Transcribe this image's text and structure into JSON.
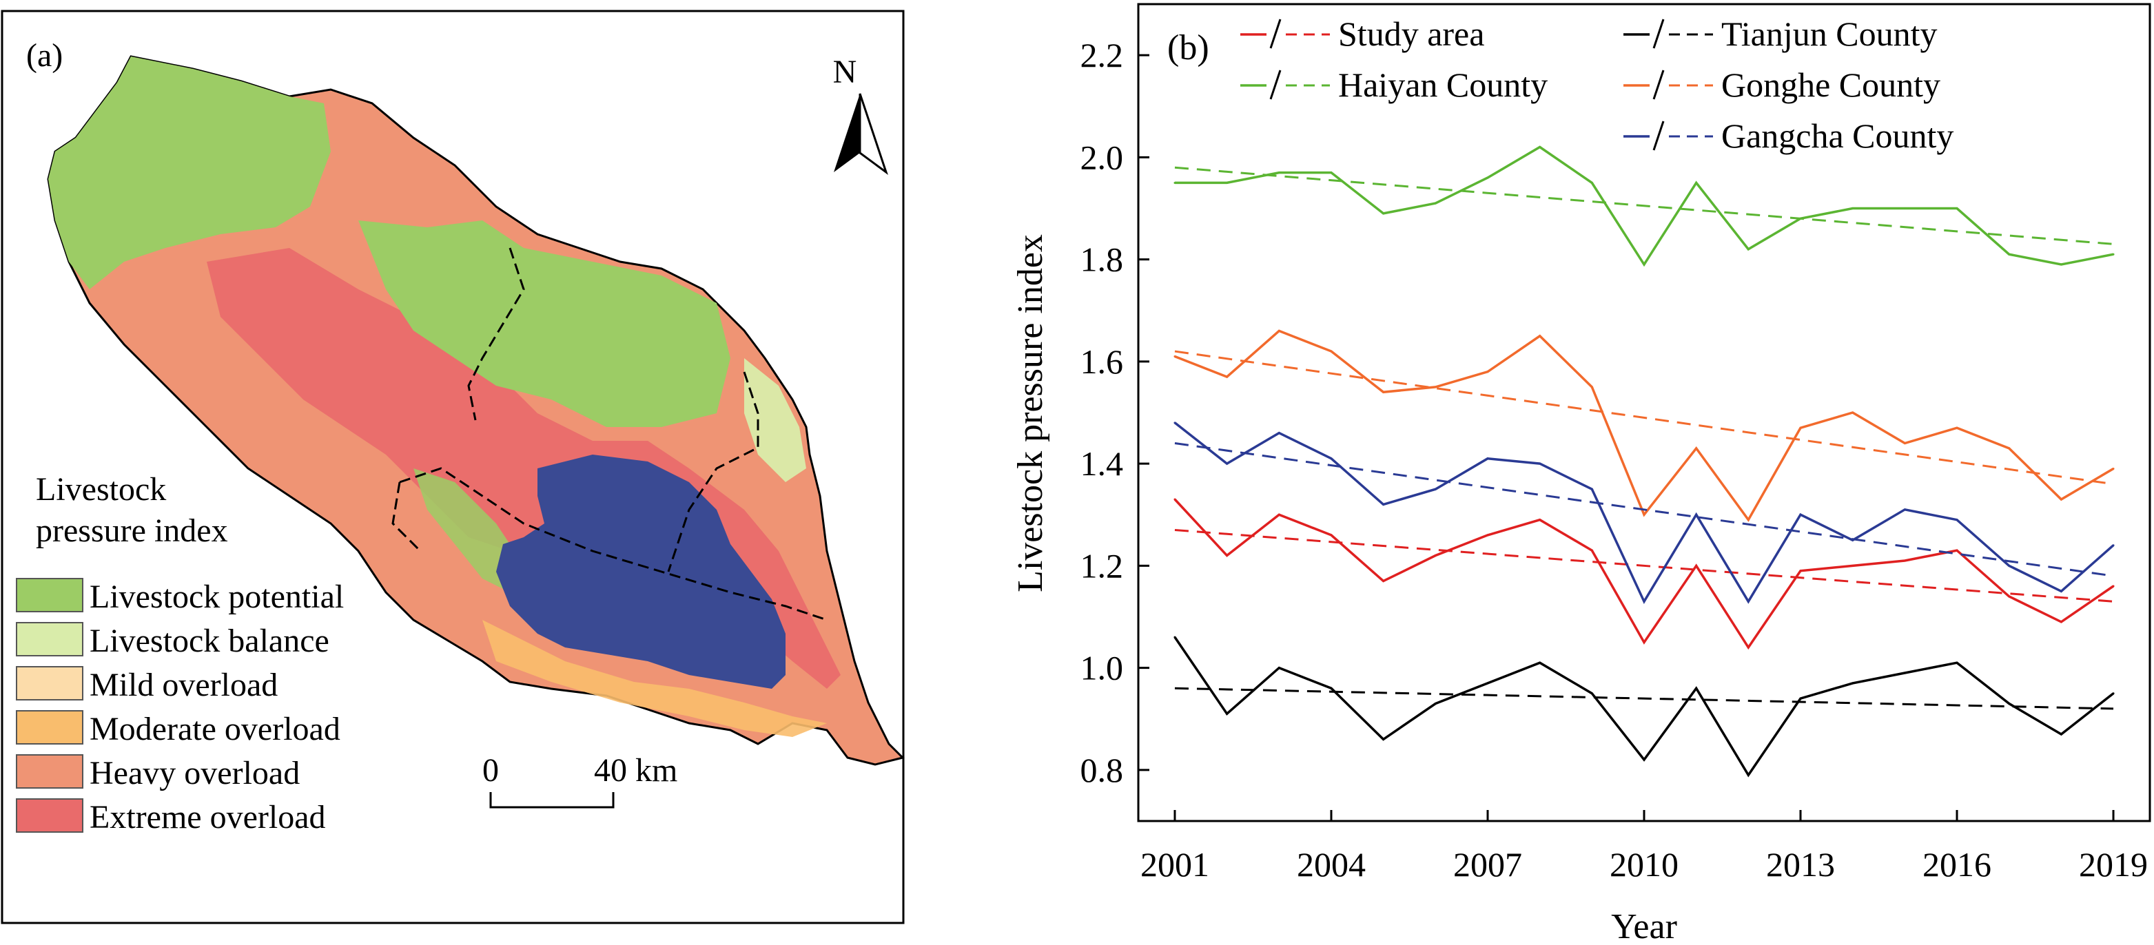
{
  "map_panel": {
    "panel_label": "(a)",
    "north_label": "N",
    "legend_title_line1": "Livestock",
    "legend_title_line2": "pressure index",
    "legend_items": [
      {
        "label": "Livestock potential",
        "color": "#9ccc65"
      },
      {
        "label": "Livestock balance",
        "color": "#d9ecaa"
      },
      {
        "label": "Mild overload",
        "color": "#fcdcaa"
      },
      {
        "label": "Moderate overload",
        "color": "#f9bd6d"
      },
      {
        "label": "Heavy overload",
        "color": "#ef9474"
      },
      {
        "label": "Extreme overload",
        "color": "#e96b6b"
      }
    ],
    "scalebar_start": "0",
    "scalebar_end": "40 km",
    "lake_color": "#3a4a93"
  },
  "chart_data": {
    "type": "line",
    "panel_label": "(b)",
    "xlabel": "Year",
    "ylabel": "Livestock pressure index",
    "xlim": [
      2000.3,
      2019.7
    ],
    "ylim": [
      0.7,
      2.3
    ],
    "x_ticks": [
      2001,
      2004,
      2007,
      2010,
      2013,
      2016,
      2019
    ],
    "y_ticks": [
      0.8,
      1.0,
      1.2,
      1.4,
      1.6,
      1.8,
      2.0,
      2.2
    ],
    "y_tick_labels": [
      "0.8",
      "1.0",
      "1.2",
      "1.4",
      "1.6",
      "1.8",
      "2.0",
      "2.2"
    ],
    "x": [
      2001,
      2002,
      2003,
      2004,
      2005,
      2006,
      2007,
      2008,
      2009,
      2010,
      2011,
      2012,
      2013,
      2014,
      2015,
      2016,
      2017,
      2018,
      2019
    ],
    "series": [
      {
        "name": "Study area",
        "color": "#e02020",
        "values": [
          1.33,
          1.22,
          1.3,
          1.26,
          1.17,
          1.22,
          1.26,
          1.29,
          1.23,
          1.05,
          1.2,
          1.04,
          1.19,
          1.2,
          1.21,
          1.23,
          1.14,
          1.09,
          1.16
        ],
        "trend": [
          1.27,
          1.13
        ]
      },
      {
        "name": "Tianjun County",
        "color": "#000000",
        "values": [
          1.06,
          0.91,
          1.0,
          0.96,
          0.86,
          0.93,
          0.97,
          1.01,
          0.95,
          0.82,
          0.96,
          0.79,
          0.94,
          0.97,
          0.99,
          1.01,
          0.93,
          0.87,
          0.95
        ],
        "trend": [
          0.96,
          0.92
        ]
      },
      {
        "name": "Haiyan County",
        "color": "#5bb532",
        "values": [
          1.95,
          1.95,
          1.97,
          1.97,
          1.89,
          1.91,
          1.96,
          2.02,
          1.95,
          1.79,
          1.95,
          1.82,
          1.88,
          1.9,
          1.9,
          1.9,
          1.81,
          1.79,
          1.81
        ],
        "trend": [
          1.98,
          1.83
        ]
      },
      {
        "name": "Gonghe County",
        "color": "#f26a2c",
        "values": [
          1.61,
          1.57,
          1.66,
          1.62,
          1.54,
          1.55,
          1.58,
          1.65,
          1.55,
          1.3,
          1.43,
          1.29,
          1.47,
          1.5,
          1.44,
          1.47,
          1.43,
          1.33,
          1.39
        ],
        "trend": [
          1.62,
          1.36
        ]
      },
      {
        "name": "Gangcha County",
        "color": "#2a3a94",
        "values": [
          1.48,
          1.4,
          1.46,
          1.41,
          1.32,
          1.35,
          1.41,
          1.4,
          1.35,
          1.13,
          1.3,
          1.13,
          1.3,
          1.25,
          1.31,
          1.29,
          1.2,
          1.15,
          1.24
        ],
        "trend": [
          1.44,
          1.18
        ]
      }
    ],
    "legend_position": "top"
  }
}
